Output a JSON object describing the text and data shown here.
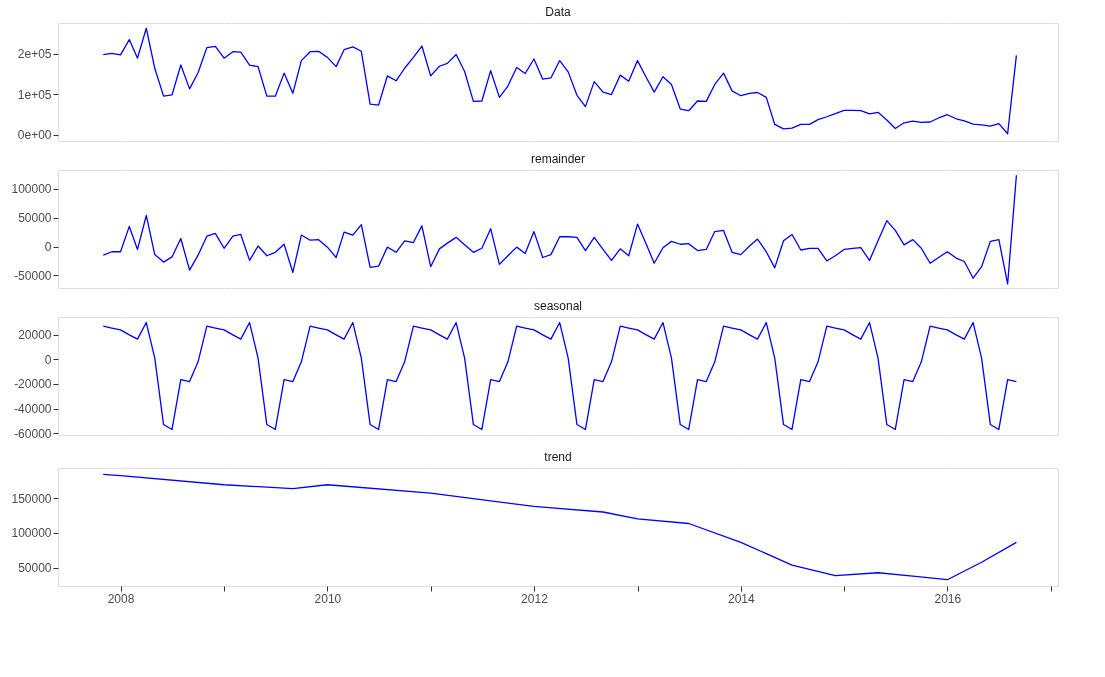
{
  "chart_data": [
    {
      "type": "line",
      "title": "Data",
      "color": "#0000ff",
      "grid": true,
      "tick_labels": "y",
      "x": [
        "2007-11",
        "2007-12",
        "2008-01",
        "2008-02",
        "2008-03",
        "2008-04",
        "2008-05",
        "2008-06",
        "2008-07",
        "2008-08",
        "2008-09",
        "2008-10",
        "2008-11",
        "2008-12",
        "2009-01",
        "2009-02",
        "2009-03",
        "2009-04",
        "2009-05",
        "2009-06",
        "2009-07",
        "2009-08",
        "2009-09",
        "2009-10",
        "2009-11",
        "2009-12",
        "2010-01",
        "2010-02",
        "2010-03",
        "2010-04",
        "2010-05",
        "2010-06",
        "2010-07",
        "2010-08",
        "2010-09",
        "2010-10",
        "2010-11",
        "2010-12",
        "2011-01",
        "2011-02",
        "2011-03",
        "2011-04",
        "2011-05",
        "2011-06",
        "2011-07",
        "2011-08",
        "2011-09",
        "2011-10",
        "2011-11",
        "2011-12",
        "2012-01",
        "2012-02",
        "2012-03",
        "2012-04",
        "2012-05",
        "2012-06",
        "2012-07",
        "2012-08",
        "2012-09",
        "2012-10",
        "2012-11",
        "2012-12",
        "2013-01",
        "2013-02",
        "2013-03",
        "2013-04",
        "2013-05",
        "2013-06",
        "2013-07",
        "2013-08",
        "2013-09",
        "2013-10",
        "2013-11",
        "2013-12",
        "2014-01",
        "2014-02",
        "2014-03",
        "2014-04",
        "2014-05",
        "2014-06",
        "2014-07",
        "2014-08",
        "2014-09",
        "2014-10",
        "2014-11",
        "2014-12",
        "2015-01",
        "2015-02",
        "2015-03",
        "2015-04",
        "2015-05",
        "2015-06",
        "2015-07",
        "2015-08",
        "2015-09",
        "2015-10",
        "2015-11",
        "2015-12",
        "2016-01",
        "2016-02",
        "2016-03",
        "2016-04",
        "2016-05",
        "2016-06",
        "2016-07",
        "2016-08",
        "2016-09"
      ],
      "values": [
        198000,
        201000,
        197000,
        235000,
        189000,
        263000,
        164000,
        95000,
        98000,
        172000,
        113000,
        153000,
        215000,
        218000,
        189000,
        205000,
        204000,
        172000,
        168000,
        95000,
        95000,
        152000,
        102000,
        183000,
        205000,
        206000,
        191000,
        168000,
        210000,
        217000,
        206000,
        75000,
        73000,
        145000,
        133000,
        164000,
        191000,
        219000,
        145000,
        169000,
        176000,
        198000,
        156000,
        82000,
        83000,
        158000,
        92000,
        120000,
        166000,
        151000,
        187000,
        137000,
        140000,
        183000,
        155000,
        97000,
        69000,
        131000,
        105000,
        99000,
        147000,
        132000,
        183000,
        141000,
        105000,
        143000,
        124000,
        63000,
        59000,
        83000,
        82000,
        124000,
        152000,
        108000,
        96000,
        102000,
        104000,
        92000,
        25000,
        14000,
        16000,
        25000,
        25000,
        37000,
        44000,
        52000,
        60000,
        60000,
        59000,
        51000,
        55000,
        36000,
        15000,
        29000,
        33000,
        30000,
        31000,
        41000,
        49000,
        39000,
        34000,
        26000,
        24000,
        21000,
        27000,
        2000,
        196000
      ],
      "ylim": [
        -16000,
        276000
      ],
      "yticks": [
        {
          "value": 0,
          "label": "0e+00"
        },
        {
          "value": 100000,
          "label": "1e+05"
        },
        {
          "value": 200000,
          "label": "2e+05"
        }
      ],
      "xlim": [
        "2007-05-25",
        "2017-01-26"
      ]
    },
    {
      "type": "line",
      "title": "remainder",
      "color": "#0000ff",
      "grid": true,
      "tick_labels": "y",
      "x": [
        "2007-11",
        "2007-12",
        "2008-01",
        "2008-02",
        "2008-03",
        "2008-04",
        "2008-05",
        "2008-06",
        "2008-07",
        "2008-08",
        "2008-09",
        "2008-10",
        "2008-11",
        "2008-12",
        "2009-01",
        "2009-02",
        "2009-03",
        "2009-04",
        "2009-05",
        "2009-06",
        "2009-07",
        "2009-08",
        "2009-09",
        "2009-10",
        "2009-11",
        "2009-12",
        "2010-01",
        "2010-02",
        "2010-03",
        "2010-04",
        "2010-05",
        "2010-06",
        "2010-07",
        "2010-08",
        "2010-09",
        "2010-10",
        "2010-11",
        "2010-12",
        "2011-01",
        "2011-02",
        "2011-03",
        "2011-04",
        "2011-05",
        "2011-06",
        "2011-07",
        "2011-08",
        "2011-09",
        "2011-10",
        "2011-11",
        "2011-12",
        "2012-01",
        "2012-02",
        "2012-03",
        "2012-04",
        "2012-05",
        "2012-06",
        "2012-07",
        "2012-08",
        "2012-09",
        "2012-10",
        "2012-11",
        "2012-12",
        "2013-01",
        "2013-02",
        "2013-03",
        "2013-04",
        "2013-05",
        "2013-06",
        "2013-07",
        "2013-08",
        "2013-09",
        "2013-10",
        "2013-11",
        "2013-12",
        "2014-01",
        "2014-02",
        "2014-03",
        "2014-04",
        "2014-05",
        "2014-06",
        "2014-07",
        "2014-08",
        "2014-09",
        "2014-10",
        "2014-11",
        "2014-12",
        "2015-01",
        "2015-02",
        "2015-03",
        "2015-04",
        "2015-05",
        "2015-06",
        "2015-07",
        "2015-08",
        "2015-09",
        "2015-10",
        "2015-11",
        "2015-12",
        "2016-01",
        "2016-02",
        "2016-03",
        "2016-04",
        "2016-05",
        "2016-06",
        "2016-07",
        "2016-08",
        "2016-09"
      ],
      "values": [
        -15000,
        -9000,
        -9000,
        35000,
        -5000,
        54000,
        -14000,
        -27000,
        -18000,
        14000,
        -41000,
        -15000,
        18000,
        23000,
        -3000,
        18000,
        21000,
        -24000,
        1000,
        -16000,
        -10000,
        4000,
        -45000,
        20000,
        11000,
        12000,
        -1000,
        -19000,
        25000,
        20000,
        38000,
        -36000,
        -34000,
        -1000,
        -10000,
        10000,
        7000,
        36000,
        -35000,
        -4000,
        6000,
        16000,
        3000,
        -10000,
        -3000,
        31000,
        -31000,
        -16000,
        -1000,
        -12000,
        26000,
        -19000,
        -14000,
        17000,
        17000,
        16000,
        -7000,
        16000,
        -5000,
        -24000,
        -4000,
        -16000,
        39000,
        4000,
        -29000,
        -2000,
        9000,
        4000,
        5000,
        -7000,
        -5000,
        26000,
        28000,
        -10000,
        -14000,
        1000,
        13000,
        -9000,
        -37000,
        10000,
        21000,
        -6000,
        -3000,
        -3000,
        -25000,
        -16000,
        -5000,
        -3000,
        -2000,
        -24000,
        10000,
        45000,
        28000,
        3000,
        12000,
        -3000,
        -29000,
        -19000,
        -9000,
        -20000,
        -26000,
        -55000,
        -35000,
        9000,
        12000,
        -65000,
        124000
      ],
      "ylim": [
        -72000,
        133000
      ],
      "yticks": [
        -50000,
        0,
        50000,
        100000
      ],
      "xlim": [
        "2007-05-25",
        "2017-01-26"
      ]
    },
    {
      "type": "line",
      "title": "seasonal",
      "color": "#0000ff",
      "grid": true,
      "tick_labels": "y",
      "x": [
        "2007-11",
        "2007-12",
        "2008-01",
        "2008-02",
        "2008-03",
        "2008-04",
        "2008-05",
        "2008-06",
        "2008-07",
        "2008-08",
        "2008-09",
        "2008-10",
        "2008-11",
        "2008-12",
        "2009-01",
        "2009-02",
        "2009-03",
        "2009-04",
        "2009-05",
        "2009-06",
        "2009-07",
        "2009-08",
        "2009-09",
        "2009-10",
        "2009-11",
        "2009-12",
        "2010-01",
        "2010-02",
        "2010-03",
        "2010-04",
        "2010-05",
        "2010-06",
        "2010-07",
        "2010-08",
        "2010-09",
        "2010-10",
        "2010-11",
        "2010-12",
        "2011-01",
        "2011-02",
        "2011-03",
        "2011-04",
        "2011-05",
        "2011-06",
        "2011-07",
        "2011-08",
        "2011-09",
        "2011-10",
        "2011-11",
        "2011-12",
        "2012-01",
        "2012-02",
        "2012-03",
        "2012-04",
        "2012-05",
        "2012-06",
        "2012-07",
        "2012-08",
        "2012-09",
        "2012-10",
        "2012-11",
        "2012-12",
        "2013-01",
        "2013-02",
        "2013-03",
        "2013-04",
        "2013-05",
        "2013-06",
        "2013-07",
        "2013-08",
        "2013-09",
        "2013-10",
        "2013-11",
        "2013-12",
        "2014-01",
        "2014-02",
        "2014-03",
        "2014-04",
        "2014-05",
        "2014-06",
        "2014-07",
        "2014-08",
        "2014-09",
        "2014-10",
        "2014-11",
        "2014-12",
        "2015-01",
        "2015-02",
        "2015-03",
        "2015-04",
        "2015-05",
        "2015-06",
        "2015-07",
        "2015-08",
        "2015-09",
        "2015-10",
        "2015-11",
        "2015-12",
        "2016-01",
        "2016-02",
        "2016-03",
        "2016-04",
        "2016-05",
        "2016-06",
        "2016-07",
        "2016-08",
        "2016-09"
      ],
      "values": [
        27000,
        25500,
        24000,
        20000,
        16500,
        30000,
        1000,
        -53000,
        -57000,
        -16500,
        -18000,
        -2000,
        27000,
        25500,
        24000,
        20000,
        16500,
        30000,
        1000,
        -53000,
        -57000,
        -16500,
        -18000,
        -2000,
        27000,
        25500,
        24000,
        20000,
        16500,
        30000,
        1000,
        -53000,
        -57000,
        -16500,
        -18000,
        -2000,
        27000,
        25500,
        24000,
        20000,
        16500,
        30000,
        1000,
        -53000,
        -57000,
        -16500,
        -18000,
        -2000,
        27000,
        25500,
        24000,
        20000,
        16500,
        30000,
        1000,
        -53000,
        -57000,
        -16500,
        -18000,
        -2000,
        27000,
        25500,
        24000,
        20000,
        16500,
        30000,
        1000,
        -53000,
        -57000,
        -16500,
        -18000,
        -2000,
        27000,
        25500,
        24000,
        20000,
        16500,
        30000,
        1000,
        -53000,
        -57000,
        -16500,
        -18000,
        -2000,
        27000,
        25500,
        24000,
        20000,
        16500,
        30000,
        1000,
        -53000,
        -57000,
        -16500,
        -18000,
        -2000,
        27000,
        25500,
        24000,
        20000,
        16500,
        30000,
        1000,
        -53000,
        -57000,
        -16500,
        -18000
      ],
      "ylim": [
        -61500,
        34500
      ],
      "yticks": [
        -60000,
        -40000,
        -20000,
        0,
        20000
      ],
      "xlim": [
        "2007-05-25",
        "2017-01-26"
      ]
    },
    {
      "type": "line",
      "title": "trend",
      "color": "#0000ff",
      "grid": true,
      "x": [
        "2007-11",
        "2008-01",
        "2009-01",
        "2009-09",
        "2010-01",
        "2011-01",
        "2012-01",
        "2012-09",
        "2013-01",
        "2013-07",
        "2014-01",
        "2014-07",
        "2014-12",
        "2015-05",
        "2015-09",
        "2016-01",
        "2016-05",
        "2016-09"
      ],
      "values": [
        184000,
        182000,
        169000,
        163500,
        169000,
        157000,
        138000,
        130000,
        120000,
        113500,
        86500,
        54000,
        39000,
        43000,
        38000,
        33000,
        58000,
        86500
      ],
      "ylim": [
        24000,
        193000
      ],
      "yticks": [
        50000,
        100000,
        150000
      ],
      "xlim": [
        "2007-05-25",
        "2017-01-26"
      ],
      "xticks": [
        {
          "value": "2008",
          "label": "2008"
        },
        {
          "value": "2009",
          "label": null
        },
        {
          "value": "2010",
          "label": "2010"
        },
        {
          "value": "2011",
          "label": null
        },
        {
          "value": "2012",
          "label": "2012"
        },
        {
          "value": "2013",
          "label": null
        },
        {
          "value": "2014",
          "label": "2014"
        },
        {
          "value": "2015",
          "label": null
        },
        {
          "value": "2016",
          "label": "2016"
        },
        {
          "value": "2017",
          "label": null
        }
      ]
    }
  ]
}
